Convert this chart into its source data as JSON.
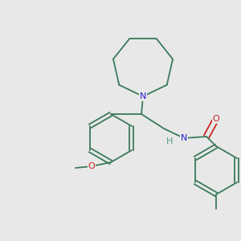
{
  "background_color": "#e8e8e8",
  "bond_color": "#3a7a5a",
  "atom_colors": {
    "N": "#2222cc",
    "O": "#cc2222",
    "H": "#4a9b8a",
    "C": "#3a7a5a"
  },
  "figsize": [
    3.0,
    3.0
  ],
  "dpi": 100
}
